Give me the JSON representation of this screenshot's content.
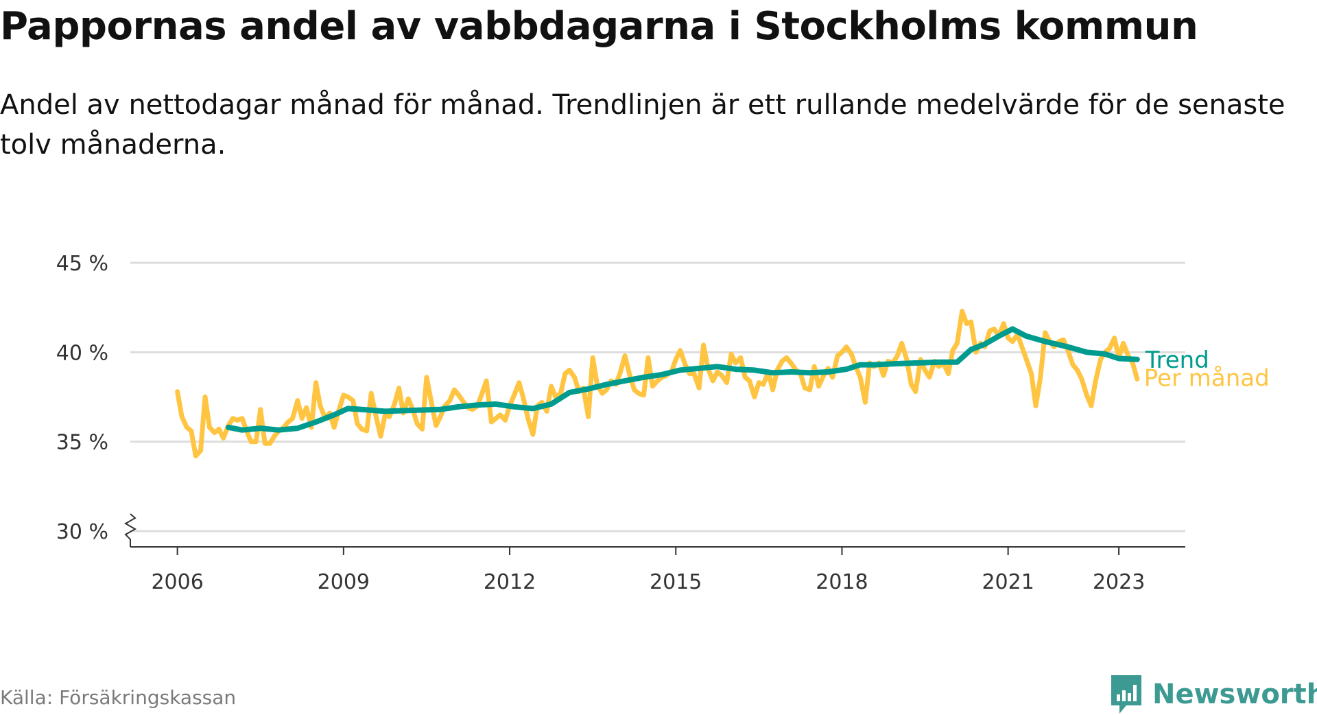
{
  "title": "Pappornas andel av vabbdagarna i Stockholms kommun",
  "subtitle": "Andel av nettodagar månad för månad. Trendlinjen är ett rullande medelvärde för de senaste tolv månaderna.",
  "source": "Källa: Försäkringskassan",
  "brand": {
    "name": "Newsworthy",
    "icon": "newsworthy-logo-icon",
    "color": "#3d9a92"
  },
  "colors": {
    "monthly": "#ffc542",
    "trend": "#009b8f",
    "grid": "#dddddd",
    "axis": "#333333"
  },
  "chart_data": {
    "type": "line",
    "ylim": [
      30,
      45
    ],
    "y_ticks": [
      {
        "value": 30,
        "label": "30 %"
      },
      {
        "value": 35,
        "label": "35 %"
      },
      {
        "value": 40,
        "label": "40 %"
      },
      {
        "value": 45,
        "label": "45 %"
      }
    ],
    "y_axis_break": true,
    "x_range": [
      2005.15,
      2024.2
    ],
    "x_ticks": [
      {
        "value": 2006,
        "label": "2006"
      },
      {
        "value": 2009,
        "label": "2009"
      },
      {
        "value": 2012,
        "label": "2012"
      },
      {
        "value": 2015,
        "label": "2015"
      },
      {
        "value": 2018,
        "label": "2018"
      },
      {
        "value": 2021,
        "label": "2021"
      },
      {
        "value": 2023,
        "label": "2023"
      }
    ],
    "grid": true,
    "legend_placement": "right end of lines",
    "series": [
      {
        "name": "Per månad",
        "color": "#ffc542",
        "points": [
          [
            2006.0,
            37.8
          ],
          [
            2006.08,
            36.4
          ],
          [
            2006.17,
            35.8
          ],
          [
            2006.25,
            35.6
          ],
          [
            2006.33,
            34.2
          ],
          [
            2006.42,
            34.5
          ],
          [
            2006.5,
            37.5
          ],
          [
            2006.58,
            35.8
          ],
          [
            2006.67,
            35.5
          ],
          [
            2006.75,
            35.7
          ],
          [
            2006.83,
            35.2
          ],
          [
            2006.92,
            35.9
          ],
          [
            2007.0,
            36.3
          ],
          [
            2007.08,
            36.2
          ],
          [
            2007.17,
            36.3
          ],
          [
            2007.25,
            35.6
          ],
          [
            2007.33,
            35.0
          ],
          [
            2007.42,
            35.0
          ],
          [
            2007.5,
            36.8
          ],
          [
            2007.58,
            34.9
          ],
          [
            2007.67,
            34.9
          ],
          [
            2007.75,
            35.3
          ],
          [
            2007.83,
            35.6
          ],
          [
            2007.92,
            35.8
          ],
          [
            2008.0,
            36.1
          ],
          [
            2008.08,
            36.3
          ],
          [
            2008.17,
            37.3
          ],
          [
            2008.25,
            36.3
          ],
          [
            2008.33,
            36.9
          ],
          [
            2008.42,
            35.8
          ],
          [
            2008.5,
            38.3
          ],
          [
            2008.58,
            37.0
          ],
          [
            2008.67,
            36.3
          ],
          [
            2008.75,
            36.6
          ],
          [
            2008.83,
            35.8
          ],
          [
            2008.92,
            36.8
          ],
          [
            2009.0,
            37.6
          ],
          [
            2009.08,
            37.5
          ],
          [
            2009.17,
            37.3
          ],
          [
            2009.25,
            36.0
          ],
          [
            2009.33,
            35.7
          ],
          [
            2009.42,
            35.6
          ],
          [
            2009.5,
            37.7
          ],
          [
            2009.58,
            36.5
          ],
          [
            2009.67,
            35.3
          ],
          [
            2009.75,
            36.5
          ],
          [
            2009.83,
            36.4
          ],
          [
            2009.92,
            37.1
          ],
          [
            2010.0,
            38.0
          ],
          [
            2010.08,
            36.6
          ],
          [
            2010.17,
            37.4
          ],
          [
            2010.25,
            36.8
          ],
          [
            2010.33,
            36.0
          ],
          [
            2010.42,
            35.7
          ],
          [
            2010.5,
            38.6
          ],
          [
            2010.58,
            37.3
          ],
          [
            2010.67,
            35.9
          ],
          [
            2010.75,
            36.4
          ],
          [
            2010.83,
            37.0
          ],
          [
            2010.92,
            37.3
          ],
          [
            2011.0,
            37.9
          ],
          [
            2011.08,
            37.6
          ],
          [
            2011.17,
            37.2
          ],
          [
            2011.25,
            36.9
          ],
          [
            2011.33,
            36.8
          ],
          [
            2011.42,
            37.0
          ],
          [
            2011.5,
            37.7
          ],
          [
            2011.58,
            38.4
          ],
          [
            2011.67,
            36.1
          ],
          [
            2011.75,
            36.3
          ],
          [
            2011.83,
            36.5
          ],
          [
            2011.92,
            36.2
          ],
          [
            2012.0,
            37.0
          ],
          [
            2012.08,
            37.6
          ],
          [
            2012.17,
            38.3
          ],
          [
            2012.25,
            37.4
          ],
          [
            2012.33,
            36.3
          ],
          [
            2012.42,
            35.4
          ],
          [
            2012.5,
            37.0
          ],
          [
            2012.58,
            37.2
          ],
          [
            2012.67,
            36.7
          ],
          [
            2012.75,
            38.1
          ],
          [
            2012.83,
            37.5
          ],
          [
            2012.92,
            37.7
          ],
          [
            2013.0,
            38.8
          ],
          [
            2013.08,
            39.0
          ],
          [
            2013.17,
            38.6
          ],
          [
            2013.25,
            37.8
          ],
          [
            2013.33,
            38.0
          ],
          [
            2013.42,
            36.4
          ],
          [
            2013.5,
            39.7
          ],
          [
            2013.58,
            38.2
          ],
          [
            2013.67,
            37.7
          ],
          [
            2013.75,
            37.9
          ],
          [
            2013.83,
            38.4
          ],
          [
            2013.92,
            38.2
          ],
          [
            2014.0,
            38.9
          ],
          [
            2014.08,
            39.8
          ],
          [
            2014.17,
            38.7
          ],
          [
            2014.25,
            37.9
          ],
          [
            2014.33,
            37.7
          ],
          [
            2014.42,
            37.6
          ],
          [
            2014.5,
            39.7
          ],
          [
            2014.58,
            38.1
          ],
          [
            2014.67,
            38.4
          ],
          [
            2014.75,
            38.6
          ],
          [
            2014.83,
            38.7
          ],
          [
            2014.92,
            38.9
          ],
          [
            2015.0,
            39.6
          ],
          [
            2015.08,
            40.1
          ],
          [
            2015.17,
            39.3
          ],
          [
            2015.25,
            38.8
          ],
          [
            2015.33,
            38.8
          ],
          [
            2015.42,
            38.0
          ],
          [
            2015.5,
            40.4
          ],
          [
            2015.58,
            39.1
          ],
          [
            2015.67,
            38.4
          ],
          [
            2015.75,
            38.9
          ],
          [
            2015.83,
            38.7
          ],
          [
            2015.92,
            38.3
          ],
          [
            2016.0,
            39.9
          ],
          [
            2016.08,
            39.4
          ],
          [
            2016.17,
            39.7
          ],
          [
            2016.25,
            38.6
          ],
          [
            2016.33,
            38.4
          ],
          [
            2016.42,
            37.5
          ],
          [
            2016.5,
            38.3
          ],
          [
            2016.58,
            38.2
          ],
          [
            2016.67,
            38.9
          ],
          [
            2016.75,
            37.9
          ],
          [
            2016.83,
            39.0
          ],
          [
            2016.92,
            39.5
          ],
          [
            2017.0,
            39.7
          ],
          [
            2017.08,
            39.4
          ],
          [
            2017.17,
            39.0
          ],
          [
            2017.25,
            38.8
          ],
          [
            2017.33,
            38.0
          ],
          [
            2017.42,
            37.9
          ],
          [
            2017.5,
            39.2
          ],
          [
            2017.58,
            38.1
          ],
          [
            2017.67,
            38.7
          ],
          [
            2017.75,
            39.1
          ],
          [
            2017.83,
            38.6
          ],
          [
            2017.92,
            39.8
          ],
          [
            2018.0,
            40.0
          ],
          [
            2018.08,
            40.3
          ],
          [
            2018.17,
            39.9
          ],
          [
            2018.25,
            39.2
          ],
          [
            2018.33,
            38.6
          ],
          [
            2018.42,
            37.2
          ],
          [
            2018.5,
            39.4
          ],
          [
            2018.58,
            39.2
          ],
          [
            2018.67,
            39.4
          ],
          [
            2018.75,
            38.7
          ],
          [
            2018.83,
            39.5
          ],
          [
            2018.92,
            39.4
          ],
          [
            2019.0,
            39.8
          ],
          [
            2019.08,
            40.5
          ],
          [
            2019.17,
            39.6
          ],
          [
            2019.25,
            38.2
          ],
          [
            2019.33,
            37.8
          ],
          [
            2019.42,
            39.6
          ],
          [
            2019.5,
            39.0
          ],
          [
            2019.58,
            38.6
          ],
          [
            2019.67,
            39.5
          ],
          [
            2019.75,
            39.2
          ],
          [
            2019.83,
            39.4
          ],
          [
            2019.92,
            38.8
          ],
          [
            2020.0,
            40.1
          ],
          [
            2020.08,
            40.5
          ],
          [
            2020.17,
            42.3
          ],
          [
            2020.25,
            41.6
          ],
          [
            2020.33,
            41.7
          ],
          [
            2020.42,
            40.0
          ],
          [
            2020.5,
            40.5
          ],
          [
            2020.58,
            40.3
          ],
          [
            2020.67,
            41.2
          ],
          [
            2020.75,
            41.3
          ],
          [
            2020.83,
            40.9
          ],
          [
            2020.92,
            41.6
          ],
          [
            2021.0,
            40.8
          ],
          [
            2021.08,
            40.6
          ],
          [
            2021.17,
            41.0
          ],
          [
            2021.25,
            40.3
          ],
          [
            2021.33,
            39.6
          ],
          [
            2021.42,
            38.8
          ],
          [
            2021.5,
            37.0
          ],
          [
            2021.58,
            38.5
          ],
          [
            2021.67,
            41.1
          ],
          [
            2021.75,
            40.6
          ],
          [
            2021.83,
            40.3
          ],
          [
            2021.92,
            40.6
          ],
          [
            2022.0,
            40.7
          ],
          [
            2022.08,
            40.1
          ],
          [
            2022.17,
            39.3
          ],
          [
            2022.25,
            39.0
          ],
          [
            2022.33,
            38.5
          ],
          [
            2022.42,
            37.6
          ],
          [
            2022.5,
            37.0
          ],
          [
            2022.58,
            38.4
          ],
          [
            2022.67,
            39.6
          ],
          [
            2022.75,
            40.0
          ],
          [
            2022.83,
            40.2
          ],
          [
            2022.92,
            40.8
          ],
          [
            2023.0,
            39.7
          ],
          [
            2023.08,
            40.5
          ],
          [
            2023.17,
            39.8
          ],
          [
            2023.25,
            39.4
          ],
          [
            2023.33,
            38.5
          ]
        ]
      },
      {
        "name": "Trend",
        "color": "#009b8f",
        "points": [
          [
            2006.92,
            35.8
          ],
          [
            2007.17,
            35.65
          ],
          [
            2007.5,
            35.75
          ],
          [
            2007.83,
            35.65
          ],
          [
            2008.17,
            35.75
          ],
          [
            2008.5,
            36.1
          ],
          [
            2008.83,
            36.5
          ],
          [
            2009.08,
            36.85
          ],
          [
            2009.33,
            36.8
          ],
          [
            2009.75,
            36.7
          ],
          [
            2010.25,
            36.75
          ],
          [
            2010.75,
            36.8
          ],
          [
            2011.08,
            36.95
          ],
          [
            2011.42,
            37.05
          ],
          [
            2011.75,
            37.1
          ],
          [
            2012.08,
            36.95
          ],
          [
            2012.42,
            36.85
          ],
          [
            2012.75,
            37.1
          ],
          [
            2013.08,
            37.75
          ],
          [
            2013.42,
            37.95
          ],
          [
            2013.75,
            38.2
          ],
          [
            2014.08,
            38.4
          ],
          [
            2014.42,
            38.6
          ],
          [
            2014.75,
            38.75
          ],
          [
            2015.08,
            39.0
          ],
          [
            2015.42,
            39.1
          ],
          [
            2015.75,
            39.2
          ],
          [
            2016.08,
            39.05
          ],
          [
            2016.42,
            39.0
          ],
          [
            2016.75,
            38.85
          ],
          [
            2017.08,
            38.9
          ],
          [
            2017.42,
            38.85
          ],
          [
            2017.75,
            38.9
          ],
          [
            2018.08,
            39.05
          ],
          [
            2018.33,
            39.3
          ],
          [
            2018.58,
            39.3
          ],
          [
            2018.92,
            39.35
          ],
          [
            2019.33,
            39.4
          ],
          [
            2019.75,
            39.45
          ],
          [
            2020.08,
            39.45
          ],
          [
            2020.33,
            40.15
          ],
          [
            2020.58,
            40.45
          ],
          [
            2020.83,
            40.9
          ],
          [
            2021.08,
            41.3
          ],
          [
            2021.33,
            40.9
          ],
          [
            2021.67,
            40.6
          ],
          [
            2022.08,
            40.3
          ],
          [
            2022.42,
            40.0
          ],
          [
            2022.75,
            39.9
          ],
          [
            2023.0,
            39.65
          ],
          [
            2023.33,
            39.6
          ]
        ]
      }
    ]
  }
}
